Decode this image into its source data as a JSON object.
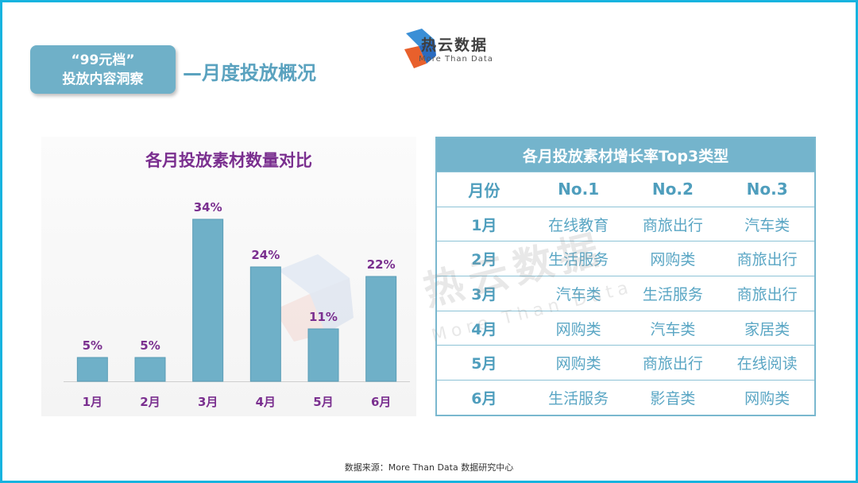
{
  "header": {
    "title_line1": "“99元档”",
    "title_line2": "投放内容洞察",
    "subtitle": "—月度投放概况"
  },
  "logo": {
    "name": "热云数据",
    "tagline": "More Than Data"
  },
  "watermark": {
    "name": "热云数据",
    "tagline": "More Than Data"
  },
  "chart_data": {
    "type": "bar",
    "title": "各月投放素材数量对比",
    "categories": [
      "1月",
      "2月",
      "3月",
      "4月",
      "5月",
      "6月"
    ],
    "values": [
      5,
      5,
      34,
      24,
      11,
      22
    ],
    "value_labels": [
      "5%",
      "5%",
      "34%",
      "24%",
      "11%",
      "22%"
    ],
    "unit": "%",
    "ylim": [
      0,
      35
    ],
    "grid": false,
    "bar_color": "#6fb0c8",
    "label_color": "#7a2f8f"
  },
  "table": {
    "title": "各月投放素材增长率Top3类型",
    "columns": [
      "月份",
      "No.1",
      "No.2",
      "No.3"
    ],
    "rows": [
      [
        "1月",
        "在线教育",
        "商旅出行",
        "汽车类"
      ],
      [
        "2月",
        "生活服务",
        "网购类",
        "商旅出行"
      ],
      [
        "3月",
        "汽车类",
        "生活服务",
        "商旅出行"
      ],
      [
        "4月",
        "网购类",
        "汽车类",
        "家居类"
      ],
      [
        "5月",
        "网购类",
        "商旅出行",
        "在线阅读"
      ],
      [
        "6月",
        "生活服务",
        "影音类",
        "网购类"
      ]
    ]
  },
  "footer": {
    "source": "数据来源：More Than Data 数据研究中心"
  },
  "colors": {
    "frame": "#17b3df",
    "accent": "#6fb0c8",
    "purple": "#7a2f8f"
  }
}
